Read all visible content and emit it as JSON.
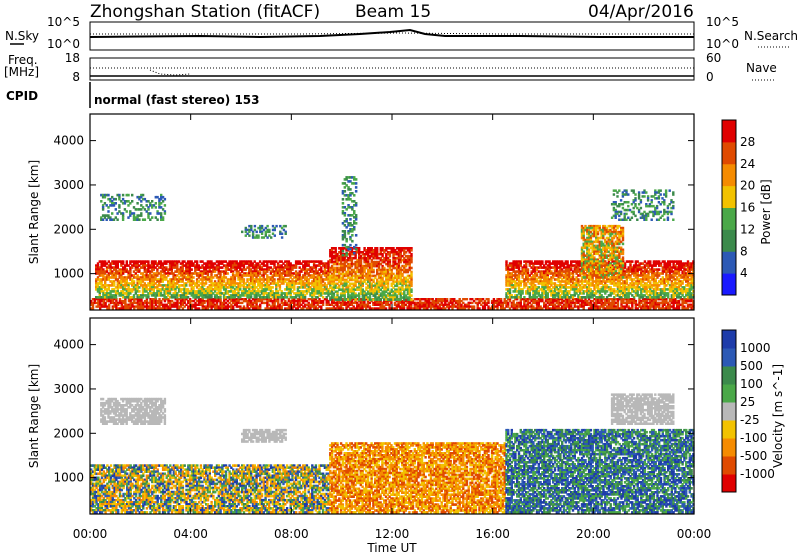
{
  "header": {
    "station": "Zhongshan Station (fitACF)",
    "beam": "Beam 15",
    "date": "04/Apr/2016"
  },
  "top_panels": {
    "nsky_label": "N.Sky",
    "nsky_top": "10^5",
    "nsky_bottom": "10^0",
    "nsearch_label": "N.Search",
    "nsearch_top": "10^5",
    "nsearch_bottom": "10^0",
    "freq_label": "Freq.",
    "freq_unit": "[MHz]",
    "freq_top": "18",
    "freq_bottom": "8",
    "nave_label": "Nave",
    "nave_top": "60",
    "nave_bottom": "0",
    "cpid_label": "CPID",
    "cpid_text": "normal (fast stereo) 153"
  },
  "chart_data": [
    {
      "type": "heatmap",
      "title": "",
      "ylabel": "Slant Range [km]",
      "xlabel": "",
      "x_ticks": [
        "00:00",
        "04:00",
        "08:00",
        "12:00",
        "16:00",
        "20:00",
        "00:00"
      ],
      "y_ticks": [
        1000,
        2000,
        3000,
        4000
      ],
      "xlim_hours": [
        0,
        24
      ],
      "ylim": [
        180,
        4600
      ],
      "colorbar": {
        "label": "Power [dB]",
        "ticks": [
          "4",
          "8",
          "12",
          "16",
          "20",
          "24",
          "28"
        ],
        "colors": [
          "#1a1aff",
          "#2c59b5",
          "#3b8a4b",
          "#4aa848",
          "#f2c200",
          "#f58b00",
          "#e04a00",
          "#e00000"
        ]
      },
      "echo_regions": [
        {
          "t0": 0.0,
          "t1": 24.0,
          "r0": 200,
          "r1": 450,
          "level": "very strong"
        },
        {
          "t0": 0.2,
          "t1": 9.5,
          "r0": 450,
          "r1": 1300,
          "level": "strong"
        },
        {
          "t0": 9.5,
          "t1": 12.8,
          "r0": 400,
          "r1": 1600,
          "level": "strong"
        },
        {
          "t0": 16.5,
          "t1": 24.0,
          "r0": 450,
          "r1": 1300,
          "level": "strong"
        },
        {
          "t0": 19.5,
          "t1": 21.2,
          "r0": 900,
          "r1": 2100,
          "level": "moderate"
        },
        {
          "t0": 0.4,
          "t1": 3.0,
          "r0": 2200,
          "r1": 2800,
          "level": "weak"
        },
        {
          "t0": 6.0,
          "t1": 7.8,
          "r0": 1800,
          "r1": 2100,
          "level": "weak"
        },
        {
          "t0": 10.0,
          "t1": 10.6,
          "r0": 1400,
          "r1": 3200,
          "level": "weak"
        },
        {
          "t0": 20.7,
          "t1": 23.2,
          "r0": 2200,
          "r1": 2900,
          "level": "weak"
        }
      ]
    },
    {
      "type": "heatmap",
      "title": "",
      "ylabel": "Slant Range [km]",
      "xlabel": "Time UT",
      "x_ticks": [
        "00:00",
        "04:00",
        "08:00",
        "12:00",
        "16:00",
        "20:00",
        "00:00"
      ],
      "y_ticks": [
        1000,
        2000,
        3000,
        4000
      ],
      "xlim_hours": [
        0,
        24
      ],
      "ylim": [
        180,
        4600
      ],
      "colorbar": {
        "label": "Velocity [m s^-1]",
        "ticks": [
          "1000",
          "500",
          "100",
          "25",
          "-25",
          "-100",
          "-500",
          "-1000"
        ],
        "colors": [
          "#1e3caa",
          "#2c59b5",
          "#3b8a4b",
          "#4aa848",
          "#b8b8b8",
          "#f2c200",
          "#f58b00",
          "#e04a00",
          "#e00000"
        ]
      },
      "echo_regions": [
        {
          "t0": 0.0,
          "t1": 9.5,
          "r0": 200,
          "r1": 1300,
          "level": "mixed positive/negative"
        },
        {
          "t0": 9.5,
          "t1": 16.5,
          "r0": 200,
          "r1": 1800,
          "level": "mostly negative"
        },
        {
          "t0": 16.5,
          "t1": 24.0,
          "r0": 200,
          "r1": 2100,
          "level": "mostly positive"
        },
        {
          "t0": 0.4,
          "t1": 3.0,
          "r0": 2200,
          "r1": 2800,
          "level": "near zero"
        },
        {
          "t0": 6.0,
          "t1": 7.8,
          "r0": 1800,
          "r1": 2100,
          "level": "near zero"
        },
        {
          "t0": 20.7,
          "t1": 23.2,
          "r0": 2200,
          "r1": 2900,
          "level": "near zero"
        }
      ]
    }
  ],
  "x_axis_label": "Time UT"
}
